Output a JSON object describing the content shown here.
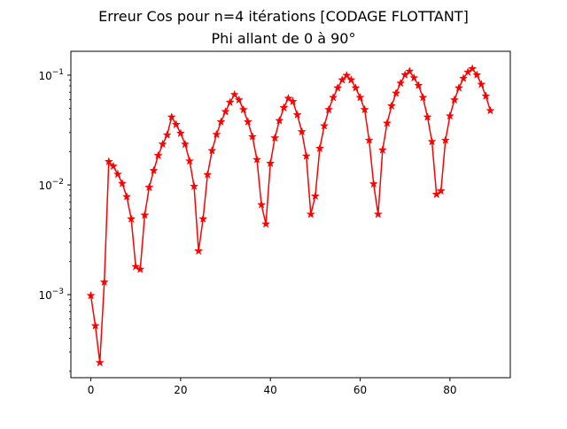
{
  "chart_data": {
    "type": "line",
    "title": "Erreur Cos pour n=4 itérations [CODAGE FLOTTANT]",
    "subtitle": "Phi allant de 0 à 90°",
    "xlabel": "",
    "ylabel": "",
    "xlim": [
      -4.45,
      93.45
    ],
    "ylim": [
      0.000175,
      0.165
    ],
    "yscale": "log",
    "grid": false,
    "x_ticks": [
      {
        "value": 0,
        "label": "0"
      },
      {
        "value": 20,
        "label": "20"
      },
      {
        "value": 40,
        "label": "40"
      },
      {
        "value": 60,
        "label": "60"
      },
      {
        "value": 80,
        "label": "80"
      }
    ],
    "y_ticks": [
      {
        "value": 0.001,
        "base": "10",
        "exp": "−3"
      },
      {
        "value": 0.01,
        "base": "10",
        "exp": "−2"
      },
      {
        "value": 0.1,
        "base": "10",
        "exp": "−1"
      }
    ],
    "series": [
      {
        "color": "#ff0000",
        "marker": "star",
        "x": [
          0,
          1,
          2,
          3,
          4,
          5,
          6,
          7,
          8,
          9,
          10,
          11,
          12,
          13,
          14,
          15,
          16,
          17,
          18,
          19,
          20,
          21,
          22,
          23,
          24,
          25,
          26,
          27,
          28,
          29,
          30,
          31,
          32,
          33,
          34,
          35,
          36,
          37,
          38,
          39,
          40,
          41,
          42,
          43,
          44,
          45,
          46,
          47,
          48,
          49,
          50,
          51,
          52,
          53,
          54,
          55,
          56,
          57,
          58,
          59,
          60,
          61,
          62,
          63,
          64,
          65,
          66,
          67,
          68,
          69,
          70,
          71,
          72,
          73,
          74,
          75,
          76,
          77,
          78,
          79,
          80,
          81,
          82,
          83,
          84,
          85,
          86,
          87,
          88,
          89
        ],
        "values": [
          0.00098,
          0.00052,
          0.00024,
          0.0013,
          0.0163,
          0.0148,
          0.0125,
          0.0103,
          0.0078,
          0.0049,
          0.0018,
          0.0017,
          0.0053,
          0.0095,
          0.0135,
          0.0185,
          0.0235,
          0.0285,
          0.0415,
          0.0355,
          0.0295,
          0.0235,
          0.0165,
          0.0097,
          0.0025,
          0.0049,
          0.0124,
          0.0205,
          0.0288,
          0.0375,
          0.0465,
          0.0565,
          0.0665,
          0.0595,
          0.0485,
          0.0375,
          0.0275,
          0.017,
          0.0066,
          0.0044,
          0.0157,
          0.0268,
          0.0385,
          0.0505,
          0.0615,
          0.0575,
          0.0435,
          0.0305,
          0.0183,
          0.0054,
          0.0079,
          0.0215,
          0.0345,
          0.0485,
          0.0625,
          0.0765,
          0.0905,
          0.0995,
          0.0905,
          0.0765,
          0.0625,
          0.0485,
          0.0255,
          0.0102,
          0.0054,
          0.0208,
          0.0365,
          0.0525,
          0.0685,
          0.0845,
          0.1005,
          0.1085,
          0.0945,
          0.0805,
          0.0625,
          0.0415,
          0.0248,
          0.0082,
          0.0088,
          0.0255,
          0.0425,
          0.0595,
          0.0765,
          0.0935,
          0.1065,
          0.1145,
          0.1005,
          0.0825,
          0.0645,
          0.0475
        ]
      }
    ]
  }
}
